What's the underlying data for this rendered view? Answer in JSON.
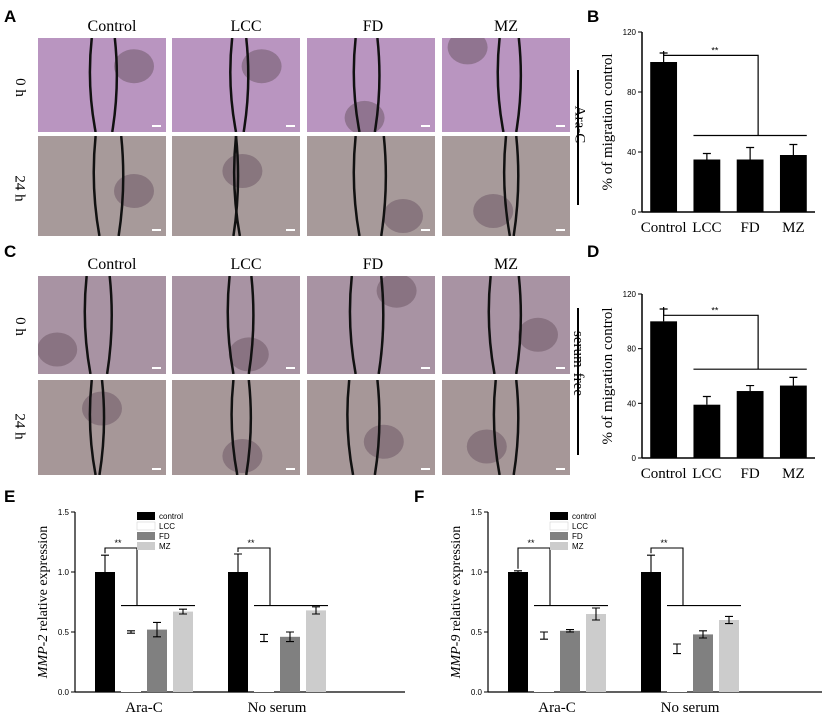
{
  "panels": {
    "A": "A",
    "B": "B",
    "C": "C",
    "D": "D",
    "E": "E",
    "F": "F"
  },
  "micrograph_columns": [
    "Control",
    "LCC",
    "FD",
    "MZ"
  ],
  "micrograph_rows": [
    "0 h",
    "24 h"
  ],
  "treatment_labels": {
    "top": "Ara-C",
    "bottom": "serum-free"
  },
  "colors": {
    "top_field": "#b995c0",
    "bottom_field": "#a79a9a",
    "c_field": "#a893a3",
    "d_field": "#a69798"
  },
  "chart_data": [
    {
      "id": "B",
      "type": "bar",
      "categories": [
        "Control",
        "LCC",
        "FD",
        "MZ"
      ],
      "values": [
        100,
        35,
        35,
        38
      ],
      "errors": [
        6,
        4,
        8,
        7
      ],
      "ylabel": "% of migration control",
      "ylim": [
        0,
        120
      ],
      "yticks": [
        0,
        40,
        80,
        120
      ],
      "significance": "**",
      "color": "#000000"
    },
    {
      "id": "D",
      "type": "bar",
      "categories": [
        "Control",
        "LCC",
        "FD",
        "MZ"
      ],
      "values": [
        100,
        39,
        49,
        53
      ],
      "errors": [
        9,
        6,
        4,
        6
      ],
      "ylabel": "% of migration control",
      "ylim": [
        0,
        120
      ],
      "yticks": [
        0,
        40,
        80,
        120
      ],
      "significance": "**",
      "color": "#000000"
    },
    {
      "id": "E",
      "type": "bar",
      "categories": [
        "Ara-C",
        "No serum"
      ],
      "series": [
        {
          "name": "control",
          "values": [
            1.0,
            1.0
          ],
          "errors": [
            0.14,
            0.15
          ],
          "color": "#000000"
        },
        {
          "name": "LCC",
          "values": [
            0.5,
            0.45
          ],
          "errors": [
            0.01,
            0.03
          ],
          "color": "#ffffff"
        },
        {
          "name": "FD",
          "values": [
            0.52,
            0.46
          ],
          "errors": [
            0.06,
            0.04
          ],
          "color": "#808080"
        },
        {
          "name": "MZ",
          "values": [
            0.67,
            0.68
          ],
          "errors": [
            0.02,
            0.03
          ],
          "color": "#cccccc"
        }
      ],
      "ylabel_italic": "MMP-2",
      "ylabel_rest": " relative expression",
      "ylim": [
        0,
        1.5
      ],
      "yticks": [
        "0.0",
        "0.5",
        "1.0",
        "1.5"
      ],
      "significance": "**"
    },
    {
      "id": "F",
      "type": "bar",
      "categories": [
        "Ara-C",
        "No serum"
      ],
      "series": [
        {
          "name": "control",
          "values": [
            1.0,
            1.0
          ],
          "errors": [
            0.01,
            0.14
          ],
          "color": "#000000"
        },
        {
          "name": "LCC",
          "values": [
            0.47,
            0.36
          ],
          "errors": [
            0.03,
            0.04
          ],
          "color": "#ffffff"
        },
        {
          "name": "FD",
          "values": [
            0.51,
            0.48
          ],
          "errors": [
            0.01,
            0.03
          ],
          "color": "#808080"
        },
        {
          "name": "MZ",
          "values": [
            0.65,
            0.6
          ],
          "errors": [
            0.05,
            0.03
          ],
          "color": "#cccccc"
        }
      ],
      "ylabel_italic": "MMP-9",
      "ylabel_rest": " relative expression",
      "ylim": [
        0,
        1.5
      ],
      "yticks": [
        "0.0",
        "0.5",
        "1.0",
        "1.5"
      ],
      "significance": "**"
    }
  ]
}
